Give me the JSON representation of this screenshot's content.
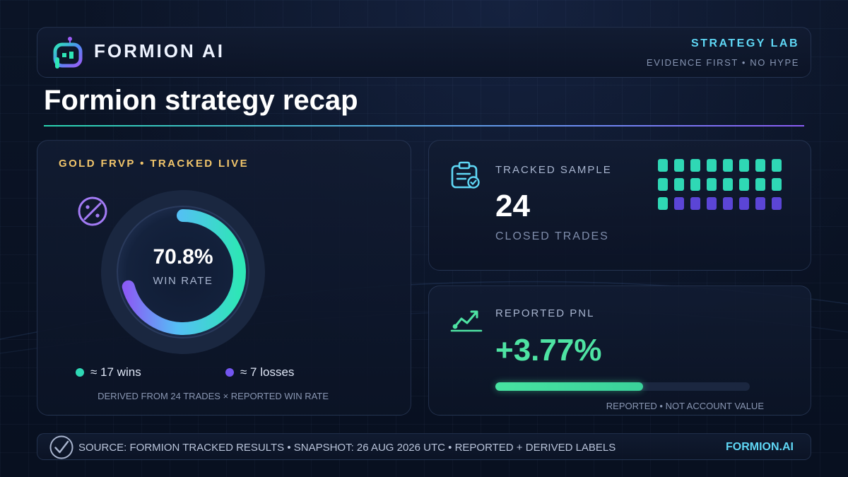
{
  "colors": {
    "accent_cyan": "#5fd7f5",
    "accent_gold": "#f1c56b",
    "win_color": "#2fd8b5",
    "loss_color": "#5b45d6",
    "pnl_green": "#4ee3a3",
    "purple": "#8a5cf5"
  },
  "header": {
    "brand": "FORMION AI",
    "logo_icon": "robot-logo-icon",
    "lab_label": "STRATEGY LAB",
    "tagline": "EVIDENCE FIRST • NO HYPE"
  },
  "page": {
    "title": "Formion strategy recap"
  },
  "win_card": {
    "strategy_label": "GOLD FRVP • TRACKED LIVE",
    "icon": "percent-icon",
    "win_rate_value": "70.8%",
    "win_rate_fraction": 0.708,
    "win_rate_caption": "WIN RATE",
    "wins_label": "≈ 17 wins",
    "losses_label": "≈ 7 losses",
    "derived_note": "DERIVED FROM 24 TRADES × REPORTED WIN RATE"
  },
  "sample_card": {
    "icon": "clipboard-check-icon",
    "label": "TRACKED SAMPLE",
    "count": "24",
    "sub_label": "CLOSED TRADES",
    "wins": 17,
    "losses": 7
  },
  "pnl_card": {
    "icon": "trend-up-icon",
    "label": "REPORTED PNL",
    "value": "+3.77%",
    "bar_fill_fraction": 0.58,
    "note": "REPORTED • NOT ACCOUNT VALUE"
  },
  "footer": {
    "icon": "check-circle-icon",
    "source_text": "SOURCE: FORMION TRACKED RESULTS • SNAPSHOT: 26 AUG 2026 UTC • REPORTED + DERIVED LABELS",
    "site": "FORMION.AI"
  }
}
